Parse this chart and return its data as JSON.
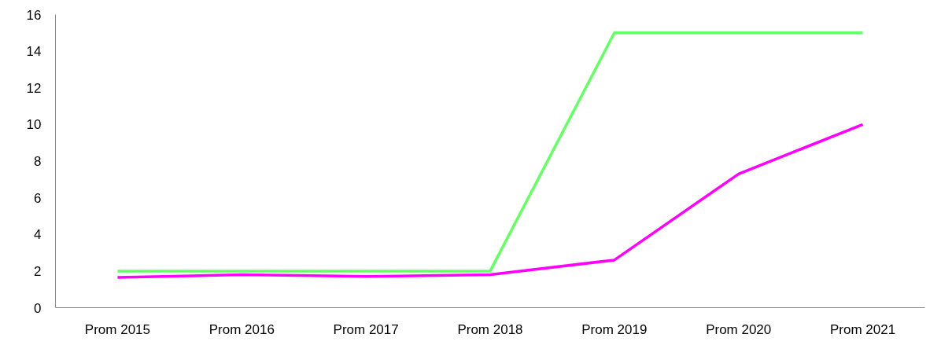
{
  "chart_data": {
    "type": "line",
    "categories": [
      "Prom 2015",
      "Prom 2016",
      "Prom 2017",
      "Prom 2018",
      "Prom 2019",
      "Prom 2020",
      "Prom 2021"
    ],
    "series": [
      {
        "color": "#66ff66",
        "values": [
          2,
          2,
          2,
          2,
          15,
          15,
          15
        ]
      },
      {
        "color": "#ff00ff",
        "values": [
          1.65,
          1.8,
          1.7,
          1.8,
          2.6,
          7.3,
          10
        ]
      }
    ],
    "ylim": [
      0,
      16
    ],
    "yticks": [
      0,
      2,
      4,
      6,
      8,
      10,
      12,
      14,
      16
    ],
    "grid": false,
    "line_style": "solid"
  }
}
